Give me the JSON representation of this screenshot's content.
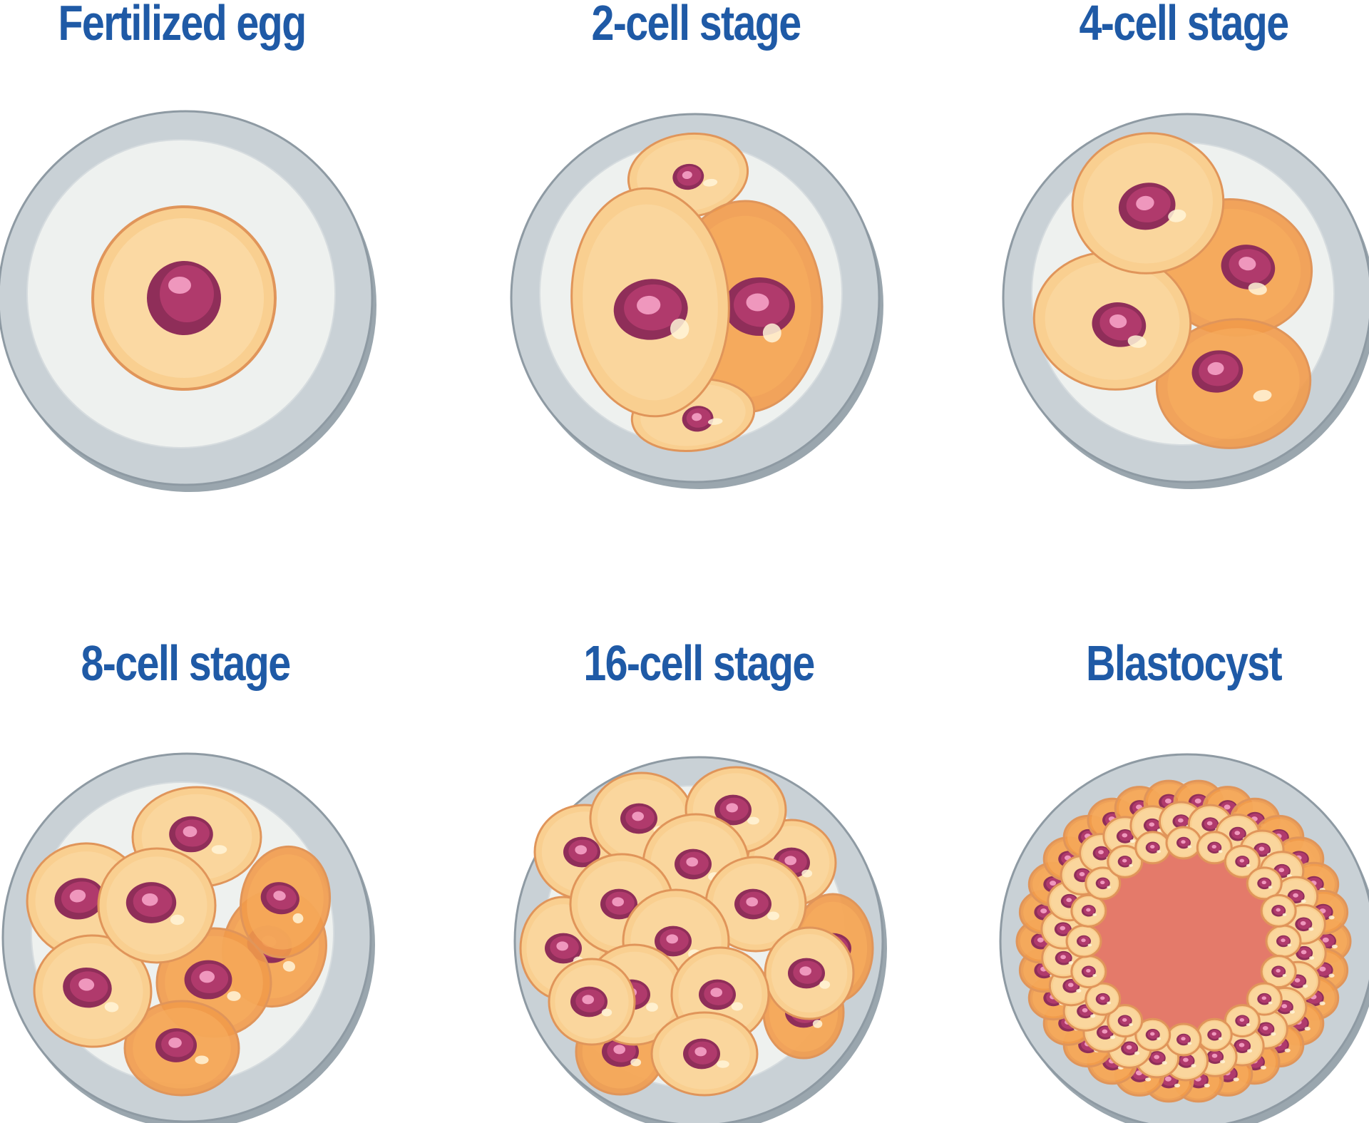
{
  "stages": [
    {
      "title": "Fertilized egg",
      "cells": 1
    },
    {
      "title": "2-cell stage",
      "cells": 2
    },
    {
      "title": "4-cell stage",
      "cells": 4
    },
    {
      "title": "8-cell stage",
      "cells": 8
    },
    {
      "title": "16-cell stage",
      "cells": 16
    },
    {
      "title": "Blastocyst",
      "cells": 0
    }
  ],
  "colors": {
    "title": "#1f5aa6",
    "zona_outer": "#9aa6ae",
    "zona_inner": "#c9d1d6",
    "egg_fill": "#eef1ef",
    "cell_fill": "#f9cf90",
    "cell_stroke": "#e0955a",
    "cell_shadow": "#f19a4a",
    "nucleus": "#b03a6c",
    "nucleus_dark": "#8f2e59",
    "nucleolus": "#ef97bd",
    "blastocoel": "#e47a6a",
    "blastocoel_rim": "#b82a2a"
  }
}
